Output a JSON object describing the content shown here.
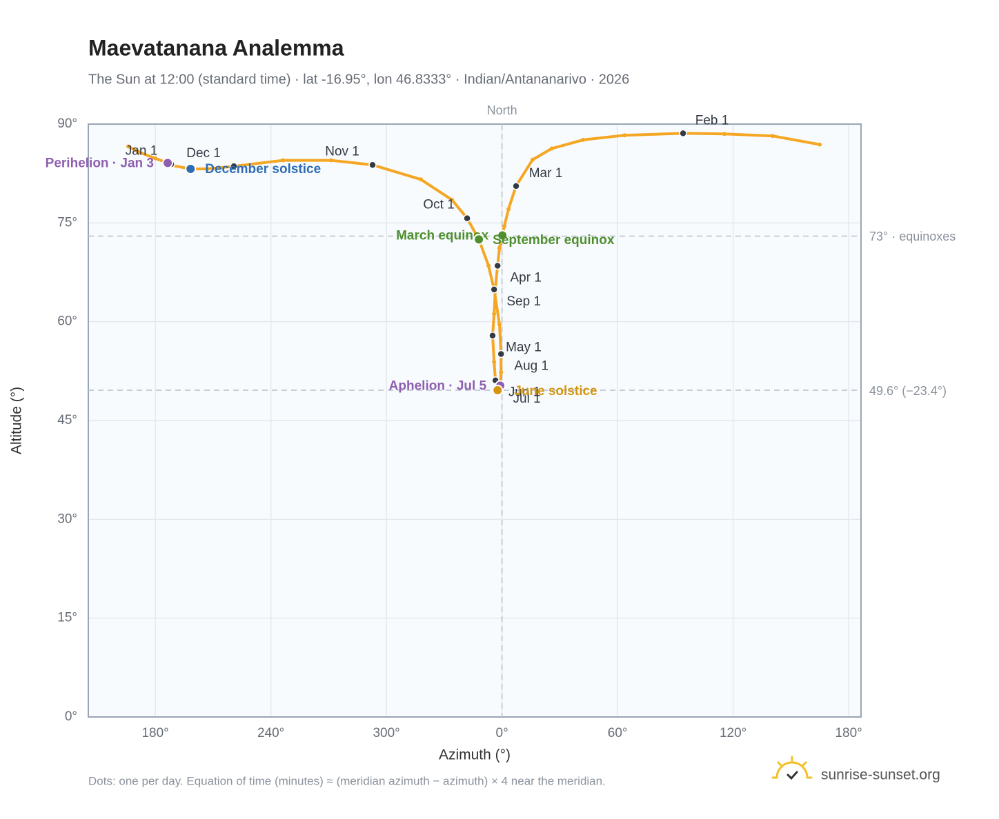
{
  "chart_data": {
    "type": "analemma",
    "title": "Maevatanana Analemma",
    "subtitle": "The Sun at 12:00 (standard time) · lat -16.95°, lon 46.8333° · Indian/Antananarivo · 2026",
    "x_label": "Azimuth (°)",
    "y_label": "Altitude (°)",
    "footnote": "Dots: one per day. Equation of time (minutes) ≈ (meridian azimuth − azimuth) × 4 near the meridian.",
    "brand": "sunrise-sunset.org",
    "xlim": [
      145.2,
      546.4
    ],
    "xticks": [
      {
        "value": 180,
        "label": "180°"
      },
      {
        "value": 240,
        "label": "240°"
      },
      {
        "value": 300,
        "label": "300°"
      },
      {
        "value": 360,
        "label": "0°"
      },
      {
        "value": 420,
        "label": "60°"
      },
      {
        "value": 480,
        "label": "120°"
      },
      {
        "value": 540,
        "label": "180°"
      }
    ],
    "ylim": [
      0,
      90
    ],
    "yticks": [
      {
        "value": 0,
        "label": "0°"
      },
      {
        "value": 15,
        "label": "15°"
      },
      {
        "value": 30,
        "label": "30°"
      },
      {
        "value": 45,
        "label": "45°"
      },
      {
        "value": 60,
        "label": "60°"
      },
      {
        "value": 75,
        "label": "75°"
      },
      {
        "value": 90,
        "label": "90°"
      }
    ],
    "grid": true,
    "series": [
      {
        "name": "Sun",
        "color": "#f5a623",
        "azimuth": [
          188.2,
          186.4,
          180.0,
          171.0,
          166.0,
          null,
          524.9,
          500.6,
          475.5,
          454.0,
          423.6,
          402.1,
          385.9,
          375.9,
          367.3,
          363.4,
          361.2,
          360.2,
          358.7,
          357.7,
          356.6,
          355.9,
          355.1,
          355.9,
          356.6,
          357.7,
          359.1,
          359.5,
          359.5,
          358.7,
          355.9,
          353.0,
          348.0,
          341.9,
          334.0,
          317.9,
          292.8,
          271.3,
          246.3,
          220.8,
          206.9,
          198.3,
          189.0
        ],
        "altitude": [
          83.9,
          84.1,
          84.8,
          85.8,
          86.6,
          null,
          86.9,
          88.2,
          88.5,
          88.6,
          88.3,
          87.6,
          86.3,
          84.6,
          80.6,
          77.1,
          74.5,
          73.1,
          71.2,
          68.5,
          65.1,
          61.2,
          57.9,
          53.9,
          51.1,
          49.6,
          50.3,
          52.3,
          55.1,
          59.6,
          64.9,
          68.5,
          72.5,
          75.7,
          78.5,
          81.6,
          83.8,
          84.5,
          84.5,
          83.6,
          83.2,
          83.2,
          83.7
        ]
      }
    ],
    "markers": {
      "color": "#333a44",
      "labels": [
        "Jan 1",
        "Feb 1",
        "Mar 1",
        "Apr 1",
        "May 1",
        "Jun 1",
        "Jul 1",
        "Aug 1",
        "Sep 1",
        "Oct 1",
        "Nov 1",
        "Dec 1"
      ],
      "azimuth": [
        188.2,
        454.0,
        367.3,
        357.7,
        355.1,
        356.6,
        358.9,
        359.5,
        355.9,
        341.9,
        292.8,
        220.8
      ],
      "altitude": [
        83.9,
        88.6,
        80.6,
        68.5,
        57.9,
        51.1,
        49.7,
        55.1,
        64.9,
        75.7,
        83.8,
        83.6
      ]
    },
    "events": [
      {
        "label": "Perihelion · Jan 3",
        "color": "#8e5fb0",
        "azimuth": 186.4,
        "altitude": 84.1
      },
      {
        "label": "December solstice",
        "color": "#2e6db4",
        "azimuth": 198.3,
        "altitude": 83.2
      },
      {
        "label": "March equinox",
        "color": "#4f8f2f",
        "azimuth": 360.2,
        "altitude": 73.1
      },
      {
        "label": "September equinox",
        "color": "#4f8f2f",
        "azimuth": 348.0,
        "altitude": 72.5
      },
      {
        "label": "Aphelion · Jul 5",
        "color": "#8e5fb0",
        "azimuth": 359.1,
        "altitude": 50.3
      },
      {
        "label": "June solstice",
        "color": "#d4960f",
        "azimuth": 357.7,
        "altitude": 49.6
      }
    ],
    "reference_lines": [
      {
        "value": 73,
        "label": "73° · equinoxes"
      },
      {
        "value": 49.6,
        "label": "49.6° (−23.4°)"
      }
    ],
    "north_line": {
      "value": 360,
      "label": "North"
    }
  }
}
